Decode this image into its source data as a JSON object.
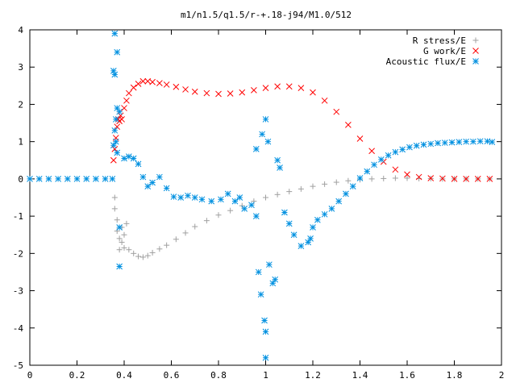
{
  "chart_data": {
    "type": "scatter",
    "title": "m1/n1.5/q1.5/r-+.18-j94/M1.0/512",
    "xlabel": "",
    "ylabel": "",
    "xlim": [
      0,
      2
    ],
    "ylim": [
      -5,
      4
    ],
    "x_ticks": [
      0,
      0.2,
      0.4,
      0.6,
      0.8,
      1,
      1.2,
      1.4,
      1.6,
      1.8,
      2
    ],
    "x_tick_labels": [
      "0",
      "0.2",
      "0.4",
      "0.6",
      "0.8",
      "1",
      "1.2",
      "1.4",
      "1.6",
      "1.8",
      "2"
    ],
    "y_ticks": [
      -5,
      -4,
      -3,
      -2,
      -1,
      0,
      1,
      2,
      3,
      4
    ],
    "y_tick_labels": [
      "-5",
      "-4",
      "-3",
      "-2",
      "-1",
      "0",
      "1",
      "2",
      "3",
      "4"
    ],
    "grid": false,
    "legend_position": "top-right",
    "series": [
      {
        "name": "R stress/E",
        "marker": "plus",
        "color": "#a0a0a0",
        "points": [
          [
            0.36,
            -0.5
          ],
          [
            0.36,
            -0.8
          ],
          [
            0.37,
            -1.1
          ],
          [
            0.37,
            -1.4
          ],
          [
            0.38,
            -1.6
          ],
          [
            0.38,
            -1.9
          ],
          [
            0.39,
            -1.3
          ],
          [
            0.39,
            -1.7
          ],
          [
            0.4,
            -1.5
          ],
          [
            0.41,
            -1.2
          ],
          [
            0.4,
            -1.85
          ],
          [
            0.42,
            -1.9
          ],
          [
            0.44,
            -2.0
          ],
          [
            0.46,
            -2.08
          ],
          [
            0.48,
            -2.1
          ],
          [
            0.5,
            -2.06
          ],
          [
            0.52,
            -1.98
          ],
          [
            0.55,
            -1.88
          ],
          [
            0.58,
            -1.78
          ],
          [
            0.62,
            -1.62
          ],
          [
            0.66,
            -1.45
          ],
          [
            0.7,
            -1.28
          ],
          [
            0.75,
            -1.12
          ],
          [
            0.8,
            -0.97
          ],
          [
            0.85,
            -0.85
          ],
          [
            0.9,
            -0.72
          ],
          [
            0.95,
            -0.6
          ],
          [
            1.0,
            -0.5
          ],
          [
            1.05,
            -0.42
          ],
          [
            1.1,
            -0.34
          ],
          [
            1.15,
            -0.27
          ],
          [
            1.2,
            -0.2
          ],
          [
            1.25,
            -0.14
          ],
          [
            1.3,
            -0.09
          ],
          [
            1.35,
            -0.05
          ],
          [
            1.4,
            -0.02
          ],
          [
            1.45,
            0.0
          ],
          [
            1.5,
            0.01
          ],
          [
            1.55,
            0.02
          ],
          [
            1.6,
            0.02
          ],
          [
            1.65,
            0.01
          ],
          [
            1.7,
            0.01
          ],
          [
            1.75,
            0.0
          ],
          [
            1.8,
            0.0
          ],
          [
            1.85,
            0.0
          ],
          [
            1.9,
            0.0
          ],
          [
            1.95,
            0.0
          ]
        ]
      },
      {
        "name": "G work/E",
        "marker": "cross",
        "color": "#ff0000",
        "points": [
          [
            0.355,
            0.5
          ],
          [
            0.36,
            0.8
          ],
          [
            0.365,
            1.1
          ],
          [
            0.37,
            1.4
          ],
          [
            0.375,
            1.6
          ],
          [
            0.38,
            1.55
          ],
          [
            0.385,
            1.7
          ],
          [
            0.39,
            1.6
          ],
          [
            0.4,
            1.9
          ],
          [
            0.41,
            2.1
          ],
          [
            0.42,
            2.3
          ],
          [
            0.44,
            2.45
          ],
          [
            0.46,
            2.55
          ],
          [
            0.48,
            2.62
          ],
          [
            0.5,
            2.62
          ],
          [
            0.52,
            2.6
          ],
          [
            0.55,
            2.57
          ],
          [
            0.58,
            2.53
          ],
          [
            0.62,
            2.47
          ],
          [
            0.66,
            2.4
          ],
          [
            0.7,
            2.34
          ],
          [
            0.75,
            2.3
          ],
          [
            0.8,
            2.28
          ],
          [
            0.85,
            2.29
          ],
          [
            0.9,
            2.32
          ],
          [
            0.95,
            2.38
          ],
          [
            1.0,
            2.44
          ],
          [
            1.05,
            2.48
          ],
          [
            1.1,
            2.48
          ],
          [
            1.15,
            2.44
          ],
          [
            1.2,
            2.32
          ],
          [
            1.25,
            2.1
          ],
          [
            1.3,
            1.8
          ],
          [
            1.35,
            1.45
          ],
          [
            1.4,
            1.08
          ],
          [
            1.45,
            0.75
          ],
          [
            1.5,
            0.46
          ],
          [
            1.55,
            0.25
          ],
          [
            1.6,
            0.12
          ],
          [
            1.65,
            0.05
          ],
          [
            1.7,
            0.02
          ],
          [
            1.75,
            0.01
          ],
          [
            1.8,
            0.0
          ],
          [
            1.85,
            0.0
          ],
          [
            1.9,
            0.0
          ],
          [
            1.95,
            0.0
          ]
        ]
      },
      {
        "name": "Acoustic flux/E",
        "marker": "star",
        "color": "#0090e0",
        "points": [
          [
            0.0,
            0.0
          ],
          [
            0.04,
            0.0
          ],
          [
            0.08,
            0.0
          ],
          [
            0.12,
            0.0
          ],
          [
            0.16,
            0.0
          ],
          [
            0.2,
            0.0
          ],
          [
            0.24,
            0.0
          ],
          [
            0.28,
            0.0
          ],
          [
            0.32,
            0.0
          ],
          [
            0.35,
            0.0
          ],
          [
            0.36,
            3.9
          ],
          [
            0.37,
            3.4
          ],
          [
            0.355,
            2.9
          ],
          [
            0.36,
            2.8
          ],
          [
            0.37,
            1.9
          ],
          [
            0.365,
            1.6
          ],
          [
            0.38,
            1.8
          ],
          [
            0.36,
            1.3
          ],
          [
            0.365,
            1.0
          ],
          [
            0.355,
            0.9
          ],
          [
            0.37,
            0.7
          ],
          [
            0.38,
            -1.3
          ],
          [
            0.38,
            -2.35
          ],
          [
            0.4,
            0.55
          ],
          [
            0.42,
            0.6
          ],
          [
            0.44,
            0.55
          ],
          [
            0.46,
            0.4
          ],
          [
            0.48,
            0.05
          ],
          [
            0.5,
            -0.2
          ],
          [
            0.52,
            -0.1
          ],
          [
            0.55,
            0.05
          ],
          [
            0.58,
            -0.25
          ],
          [
            0.61,
            -0.48
          ],
          [
            0.64,
            -0.5
          ],
          [
            0.67,
            -0.45
          ],
          [
            0.7,
            -0.5
          ],
          [
            0.73,
            -0.55
          ],
          [
            0.77,
            -0.6
          ],
          [
            0.81,
            -0.55
          ],
          [
            0.84,
            -0.4
          ],
          [
            0.87,
            -0.6
          ],
          [
            0.89,
            -0.5
          ],
          [
            0.91,
            -0.8
          ],
          [
            0.94,
            -0.7
          ],
          [
            0.96,
            -1.0
          ],
          [
            0.97,
            -2.5
          ],
          [
            0.98,
            -3.1
          ],
          [
            0.995,
            -3.8
          ],
          [
            1.0,
            -4.1
          ],
          [
            1.0,
            -4.8
          ],
          [
            1.015,
            -2.3
          ],
          [
            1.03,
            -2.8
          ],
          [
            1.04,
            -2.7
          ],
          [
            0.96,
            0.8
          ],
          [
            0.985,
            1.2
          ],
          [
            1.0,
            1.6
          ],
          [
            1.01,
            1.0
          ],
          [
            1.05,
            0.5
          ],
          [
            1.06,
            0.3
          ],
          [
            1.08,
            -0.9
          ],
          [
            1.1,
            -1.2
          ],
          [
            1.12,
            -1.5
          ],
          [
            1.15,
            -1.8
          ],
          [
            1.18,
            -1.7
          ],
          [
            1.19,
            -1.6
          ],
          [
            1.2,
            -1.3
          ],
          [
            1.22,
            -1.1
          ],
          [
            1.25,
            -0.95
          ],
          [
            1.28,
            -0.8
          ],
          [
            1.31,
            -0.6
          ],
          [
            1.34,
            -0.4
          ],
          [
            1.37,
            -0.2
          ],
          [
            1.4,
            0.02
          ],
          [
            1.43,
            0.2
          ],
          [
            1.46,
            0.38
          ],
          [
            1.49,
            0.52
          ],
          [
            1.52,
            0.63
          ],
          [
            1.55,
            0.72
          ],
          [
            1.58,
            0.79
          ],
          [
            1.61,
            0.85
          ],
          [
            1.64,
            0.89
          ],
          [
            1.67,
            0.92
          ],
          [
            1.7,
            0.94
          ],
          [
            1.73,
            0.96
          ],
          [
            1.76,
            0.97
          ],
          [
            1.79,
            0.98
          ],
          [
            1.82,
            0.99
          ],
          [
            1.85,
            1.0
          ],
          [
            1.88,
            1.0
          ],
          [
            1.91,
            1.01
          ],
          [
            1.94,
            1.01
          ],
          [
            1.96,
            0.99
          ]
        ]
      }
    ]
  }
}
